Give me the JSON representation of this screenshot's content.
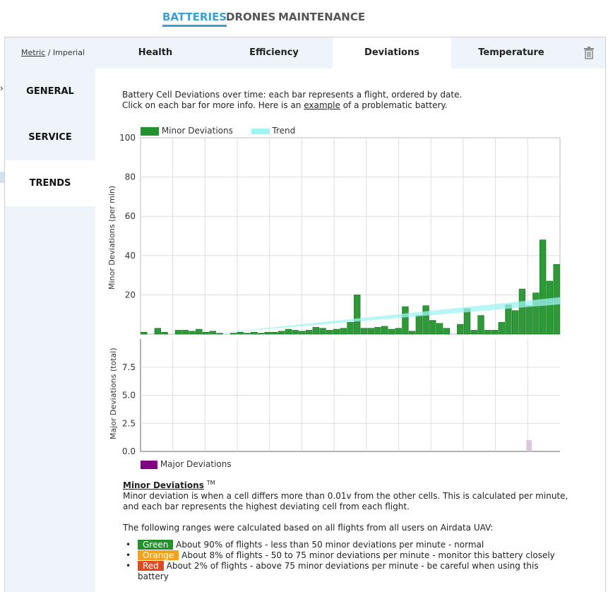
{
  "topnav": {
    "tabs": [
      {
        "label": "BATTERIES",
        "active": true
      },
      {
        "label": "DRONES",
        "active": false
      },
      {
        "label": "MAINTENANCE",
        "active": false
      }
    ]
  },
  "units": {
    "metric": "Metric",
    "separator": " / ",
    "imperial": "Imperial"
  },
  "subtabs": [
    {
      "label": "Health"
    },
    {
      "label": "Efficiency"
    },
    {
      "label": "Deviations",
      "active": true
    },
    {
      "label": "Temperature"
    }
  ],
  "sidebar": {
    "items": [
      {
        "label": "GENERAL"
      },
      {
        "label": "SERVICE"
      },
      {
        "label": "TRENDS",
        "active": true
      }
    ]
  },
  "intro": {
    "line1": "Battery Cell Deviations over time: each bar represents a flight, ordered by date.",
    "line2_pre": "Click on each bar for more info. Here is an ",
    "line2_link": "example",
    "line2_post": " of a problematic battery."
  },
  "colors": {
    "minor": "#22932c",
    "trend": "#9ff3f3",
    "major": "#800080",
    "green": "#22932c",
    "orange": "#f4a21b",
    "red": "#dd4b22"
  },
  "chart_data": [
    {
      "type": "bar",
      "title": "",
      "ylabel": "Minor Deviations (per min)",
      "ylim": [
        0,
        100
      ],
      "yticks": [
        20,
        40,
        60,
        80,
        100
      ],
      "grid": true,
      "legend": "top-left",
      "series": [
        {
          "name": "Minor Deviations",
          "values": [
            1,
            0,
            3,
            1,
            0,
            2,
            2,
            1.5,
            2.5,
            1,
            1.5,
            0.5,
            0,
            0.5,
            1,
            0.5,
            1,
            0.5,
            1,
            1,
            1.5,
            2.5,
            2,
            1.5,
            2,
            3.5,
            3,
            2,
            2.5,
            3,
            6,
            20,
            3,
            3,
            3.5,
            4,
            2.5,
            3,
            14,
            1.5,
            9.5,
            14.5,
            7,
            5.5,
            3,
            0,
            5,
            13,
            2,
            9.5,
            2,
            2,
            6,
            15,
            12,
            23,
            14.5,
            21,
            48,
            27,
            35.5
          ]
        },
        {
          "name": "Trend",
          "values": [
            0,
            17
          ],
          "style": "line"
        }
      ]
    },
    {
      "type": "bar",
      "title": "",
      "ylabel": "Major Deviations (total)",
      "ylim": [
        0,
        10
      ],
      "yticks": [
        "0.0",
        "2.5",
        "5.0",
        "7.5"
      ],
      "legend": "bottom-left",
      "series": [
        {
          "name": "Major Deviations",
          "values": [
            0,
            0,
            0,
            0,
            0,
            0,
            0,
            0,
            0,
            0,
            0,
            0,
            0,
            0,
            0,
            0,
            0,
            0,
            0,
            0,
            0,
            0,
            0,
            0,
            0,
            0,
            0,
            0,
            0,
            0,
            0,
            0,
            0,
            0,
            0,
            0,
            0,
            0,
            0,
            0,
            0,
            0,
            0,
            0,
            0,
            0,
            0,
            0,
            0,
            0,
            0,
            0,
            0,
            0,
            0,
            0,
            1,
            0,
            0,
            0,
            0
          ]
        }
      ]
    }
  ],
  "description": {
    "title": "Minor Deviations",
    "tm": "TM",
    "body": "Minor deviation is when a cell differs more than 0.01v from the other cells. This is calculated per minute, and each bar represents the highest deviating cell from each flight.",
    "ranges_intro": "The following ranges were calculated based on all flights from all users on Airdata UAV:"
  },
  "ranges": [
    {
      "badge": "Green",
      "text": " About 90% of flights - less than 50 minor deviations per minute - normal"
    },
    {
      "badge": "Orange",
      "text": " About 8% of flights - 50 to 75 minor deviations per minute - monitor this battery closely"
    },
    {
      "badge": "Red",
      "text": " About 2% of flights - above 75 minor deviations per minute - be careful when using this battery"
    }
  ]
}
